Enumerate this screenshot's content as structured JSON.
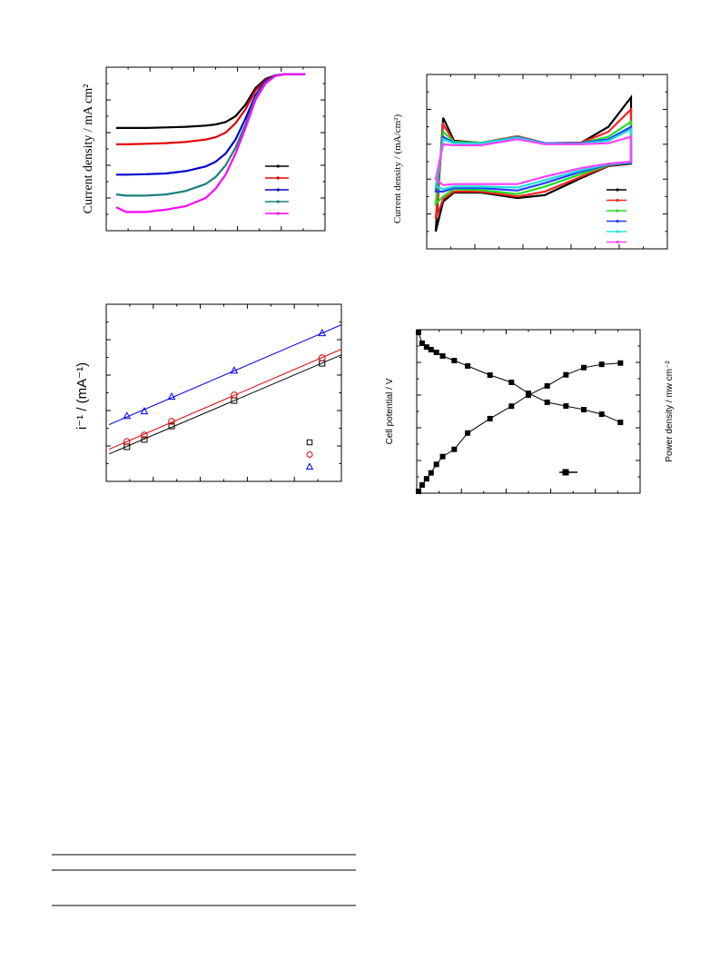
{
  "chart_data": [
    {
      "type": "line",
      "y_label": "Current density / mA cm²",
      "xlim": [
        0,
        1.1
      ],
      "ylim": [
        -6.5,
        0.5
      ],
      "x": [
        0.05,
        0.1,
        0.2,
        0.3,
        0.4,
        0.5,
        0.55,
        0.6,
        0.65,
        0.7,
        0.75,
        0.8,
        0.85,
        0.9,
        0.95,
        1.0
      ],
      "series": [
        {
          "color": "#000000",
          "values": [
            -2.1,
            -2.1,
            -2.1,
            -2.08,
            -2.05,
            -2.0,
            -1.95,
            -1.85,
            -1.6,
            -1.1,
            -0.4,
            0.0,
            0.15,
            0.2,
            0.2,
            0.2
          ]
        },
        {
          "color": "#e00000",
          "values": [
            -2.8,
            -2.8,
            -2.78,
            -2.75,
            -2.7,
            -2.6,
            -2.5,
            -2.3,
            -1.9,
            -1.3,
            -0.5,
            -0.05,
            0.15,
            0.2,
            0.2,
            0.2
          ]
        },
        {
          "color": "#0000cc",
          "values": [
            -4.1,
            -4.1,
            -4.08,
            -4.05,
            -3.95,
            -3.75,
            -3.55,
            -3.2,
            -2.6,
            -1.7,
            -0.7,
            -0.1,
            0.15,
            0.2,
            0.2,
            0.2
          ]
        },
        {
          "color": "#1a8080",
          "values": [
            -4.95,
            -5.0,
            -5.0,
            -4.95,
            -4.8,
            -4.5,
            -4.2,
            -3.7,
            -2.95,
            -1.95,
            -0.8,
            -0.15,
            0.15,
            0.2,
            0.2,
            0.2
          ]
        },
        {
          "color": "#ff00ff",
          "values": [
            -5.5,
            -5.7,
            -5.7,
            -5.6,
            -5.45,
            -5.1,
            -4.7,
            -4.1,
            -3.2,
            -2.1,
            -0.9,
            -0.2,
            0.13,
            0.2,
            0.2,
            0.2
          ]
        }
      ]
    },
    {
      "type": "line",
      "closed": true,
      "y_label": "Current density / (mA/cm²)",
      "xlim": [
        0,
        1.2
      ],
      "ylim": [
        -2,
        1.5
      ],
      "x": [
        0.045,
        0.082,
        0.136,
        0.272,
        0.453,
        0.589,
        0.77,
        0.906,
        1.019,
        1.019,
        0.906,
        0.77,
        0.589,
        0.453,
        0.272,
        0.136,
        0.082
      ],
      "series": [
        {
          "color": "#000000",
          "values": [
            -1.65,
            0.63,
            0.17,
            0.13,
            0.26,
            0.12,
            0.13,
            0.45,
            1.04,
            -0.29,
            -0.34,
            -0.58,
            -0.92,
            -0.98,
            -0.87,
            -0.87,
            -1.05
          ]
        },
        {
          "color": "#ff2020",
          "values": [
            -1.4,
            0.5,
            0.15,
            0.13,
            0.26,
            0.12,
            0.13,
            0.35,
            0.8,
            -0.27,
            -0.33,
            -0.55,
            -0.85,
            -0.95,
            -0.85,
            -0.85,
            -1.0
          ]
        },
        {
          "color": "#22dd22",
          "values": [
            -1.1,
            0.35,
            0.15,
            0.13,
            0.25,
            0.12,
            0.12,
            0.25,
            0.55,
            -0.27,
            -0.32,
            -0.5,
            -0.75,
            -0.9,
            -0.82,
            -0.8,
            -0.95
          ]
        },
        {
          "color": "#2040ff",
          "values": [
            -0.85,
            0.25,
            0.13,
            0.12,
            0.24,
            0.12,
            0.12,
            0.2,
            0.45,
            -0.27,
            -0.31,
            -0.45,
            -0.68,
            -0.83,
            -0.78,
            -0.78,
            -0.85
          ]
        },
        {
          "color": "#22dddd",
          "values": [
            -0.75,
            0.2,
            0.12,
            0.12,
            0.23,
            0.11,
            0.11,
            0.17,
            0.4,
            -0.26,
            -0.3,
            -0.42,
            -0.62,
            -0.77,
            -0.75,
            -0.75,
            -0.8
          ]
        },
        {
          "color": "#ff40ff",
          "values": [
            -0.6,
            0.1,
            0.08,
            0.08,
            0.2,
            0.1,
            0.1,
            0.12,
            0.25,
            -0.25,
            -0.29,
            -0.38,
            -0.55,
            -0.7,
            -0.7,
            -0.7,
            -0.72
          ]
        }
      ]
    },
    {
      "type": "scatter",
      "y_label": "i⁻¹ / (mA⁻¹)",
      "xlim": [
        0,
        0.5
      ],
      "ylim": [
        0,
        0.8
      ],
      "x": [
        0.044,
        0.081,
        0.139,
        0.272,
        0.459
      ],
      "series": [
        {
          "color": "#000000",
          "marker": "square",
          "values": [
            0.156,
            0.189,
            0.25,
            0.365,
            0.533
          ]
        },
        {
          "color": "#e00000",
          "marker": "circle",
          "values": [
            0.18,
            0.209,
            0.271,
            0.39,
            0.558
          ]
        },
        {
          "color": "#0000ee",
          "marker": "triangle",
          "values": [
            0.295,
            0.316,
            0.382,
            0.5,
            0.669
          ]
        }
      ]
    },
    {
      "type": "line",
      "y_label": "Cell potential / V",
      "y2_label": "Power density / mw cm⁻²",
      "xlim": [
        0,
        250
      ],
      "ylim": [
        0,
        1.0
      ],
      "y2lim": [
        0,
        250
      ],
      "x": [
        2,
        6,
        11,
        16,
        22,
        29,
        42,
        57,
        82,
        106,
        125,
        146,
        167,
        187,
        207,
        228
      ],
      "series": [
        {
          "color": "#000000",
          "marker": "square",
          "values": [
            0.983,
            0.917,
            0.894,
            0.878,
            0.861,
            0.839,
            0.811,
            0.778,
            0.722,
            0.678,
            0.611,
            0.556,
            0.533,
            0.511,
            0.483,
            0.433
          ]
        },
        {
          "color": "#000000",
          "marker": "square",
          "axis": "y2",
          "values": [
            2.8,
            12.5,
            22,
            31,
            44,
            56,
            67,
            92,
            114,
            133,
            150,
            164,
            181,
            192,
            197,
            199
          ]
        }
      ]
    }
  ]
}
